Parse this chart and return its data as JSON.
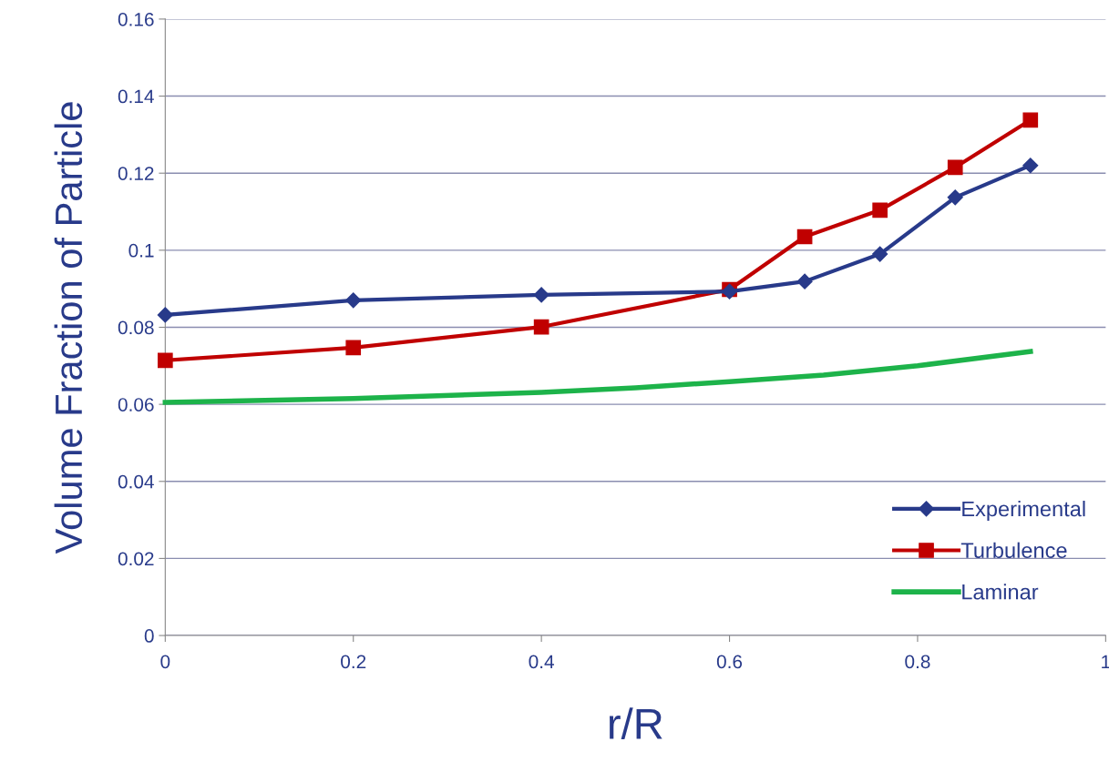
{
  "chart_data": {
    "type": "line",
    "xlabel": "r/R",
    "ylabel": "Volume Fraction of Particle",
    "series": [
      {
        "name": "Experimental",
        "color": "#283a8a",
        "marker": "diamond",
        "x": [
          0,
          0.2,
          0.4,
          0.6,
          0.68,
          0.76,
          0.84,
          0.92
        ],
        "values": [
          0.0832,
          0.087,
          0.0884,
          0.0893,
          0.0919,
          0.099,
          0.1137,
          0.122
        ]
      },
      {
        "name": "Turbulence",
        "color": "#c00000",
        "marker": "square",
        "x": [
          0,
          0.2,
          0.4,
          0.6,
          0.68,
          0.76,
          0.84,
          0.92
        ],
        "values": [
          0.0714,
          0.0747,
          0.0801,
          0.0898,
          0.1035,
          0.1104,
          0.1215,
          0.1338
        ]
      },
      {
        "name": "Laminar",
        "color": "#1db34a",
        "marker": "none",
        "x": [
          0,
          0.2,
          0.4,
          0.5,
          0.6,
          0.7,
          0.8,
          0.92
        ],
        "values": [
          0.0605,
          0.0615,
          0.0631,
          0.0643,
          0.0659,
          0.0676,
          0.07,
          0.0737
        ]
      }
    ],
    "xlim": [
      0,
      1
    ],
    "xticks": [
      0,
      0.2,
      0.4,
      0.6,
      0.8,
      1
    ],
    "ylim": [
      0,
      0.16
    ],
    "yticks": [
      0,
      0.02,
      0.04,
      0.06,
      0.08,
      0.1,
      0.12,
      0.14,
      0.16
    ],
    "grid": "y",
    "legend": "bottom right"
  }
}
